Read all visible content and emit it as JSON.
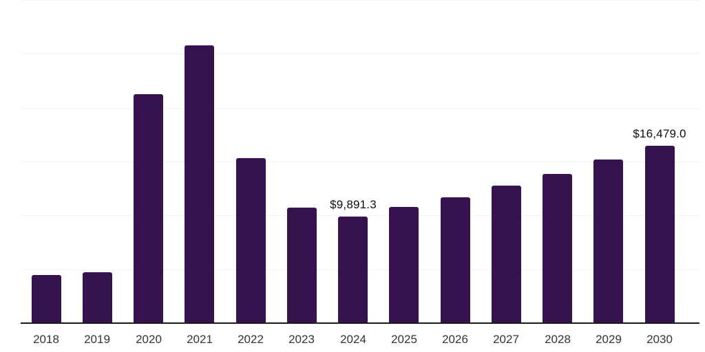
{
  "chart_data": {
    "type": "bar",
    "title": "",
    "xlabel": "",
    "ylabel": "",
    "categories": [
      "2018",
      "2019",
      "2020",
      "2021",
      "2022",
      "2023",
      "2024",
      "2025",
      "2026",
      "2027",
      "2028",
      "2029",
      "2030"
    ],
    "values": [
      4480,
      4740,
      21250,
      25790,
      15300,
      10750,
      9891.3,
      10760,
      11710,
      12740,
      13820,
      15170,
      16479.0
    ],
    "labeled_points": [
      {
        "category": "2024",
        "label": "$9,891.3"
      },
      {
        "category": "2030",
        "label": "$16,479.0"
      }
    ],
    "ylim": [
      0,
      30000
    ],
    "gridline_interval": 5000,
    "grid": true,
    "legend": false,
    "colors": {
      "bar": "#36124f",
      "gridline": "#f2f2f2",
      "axis_line": "#1a1a1a",
      "tick_label": "#333333",
      "data_label": "#0d0d0d",
      "background": "#ffffff"
    }
  }
}
